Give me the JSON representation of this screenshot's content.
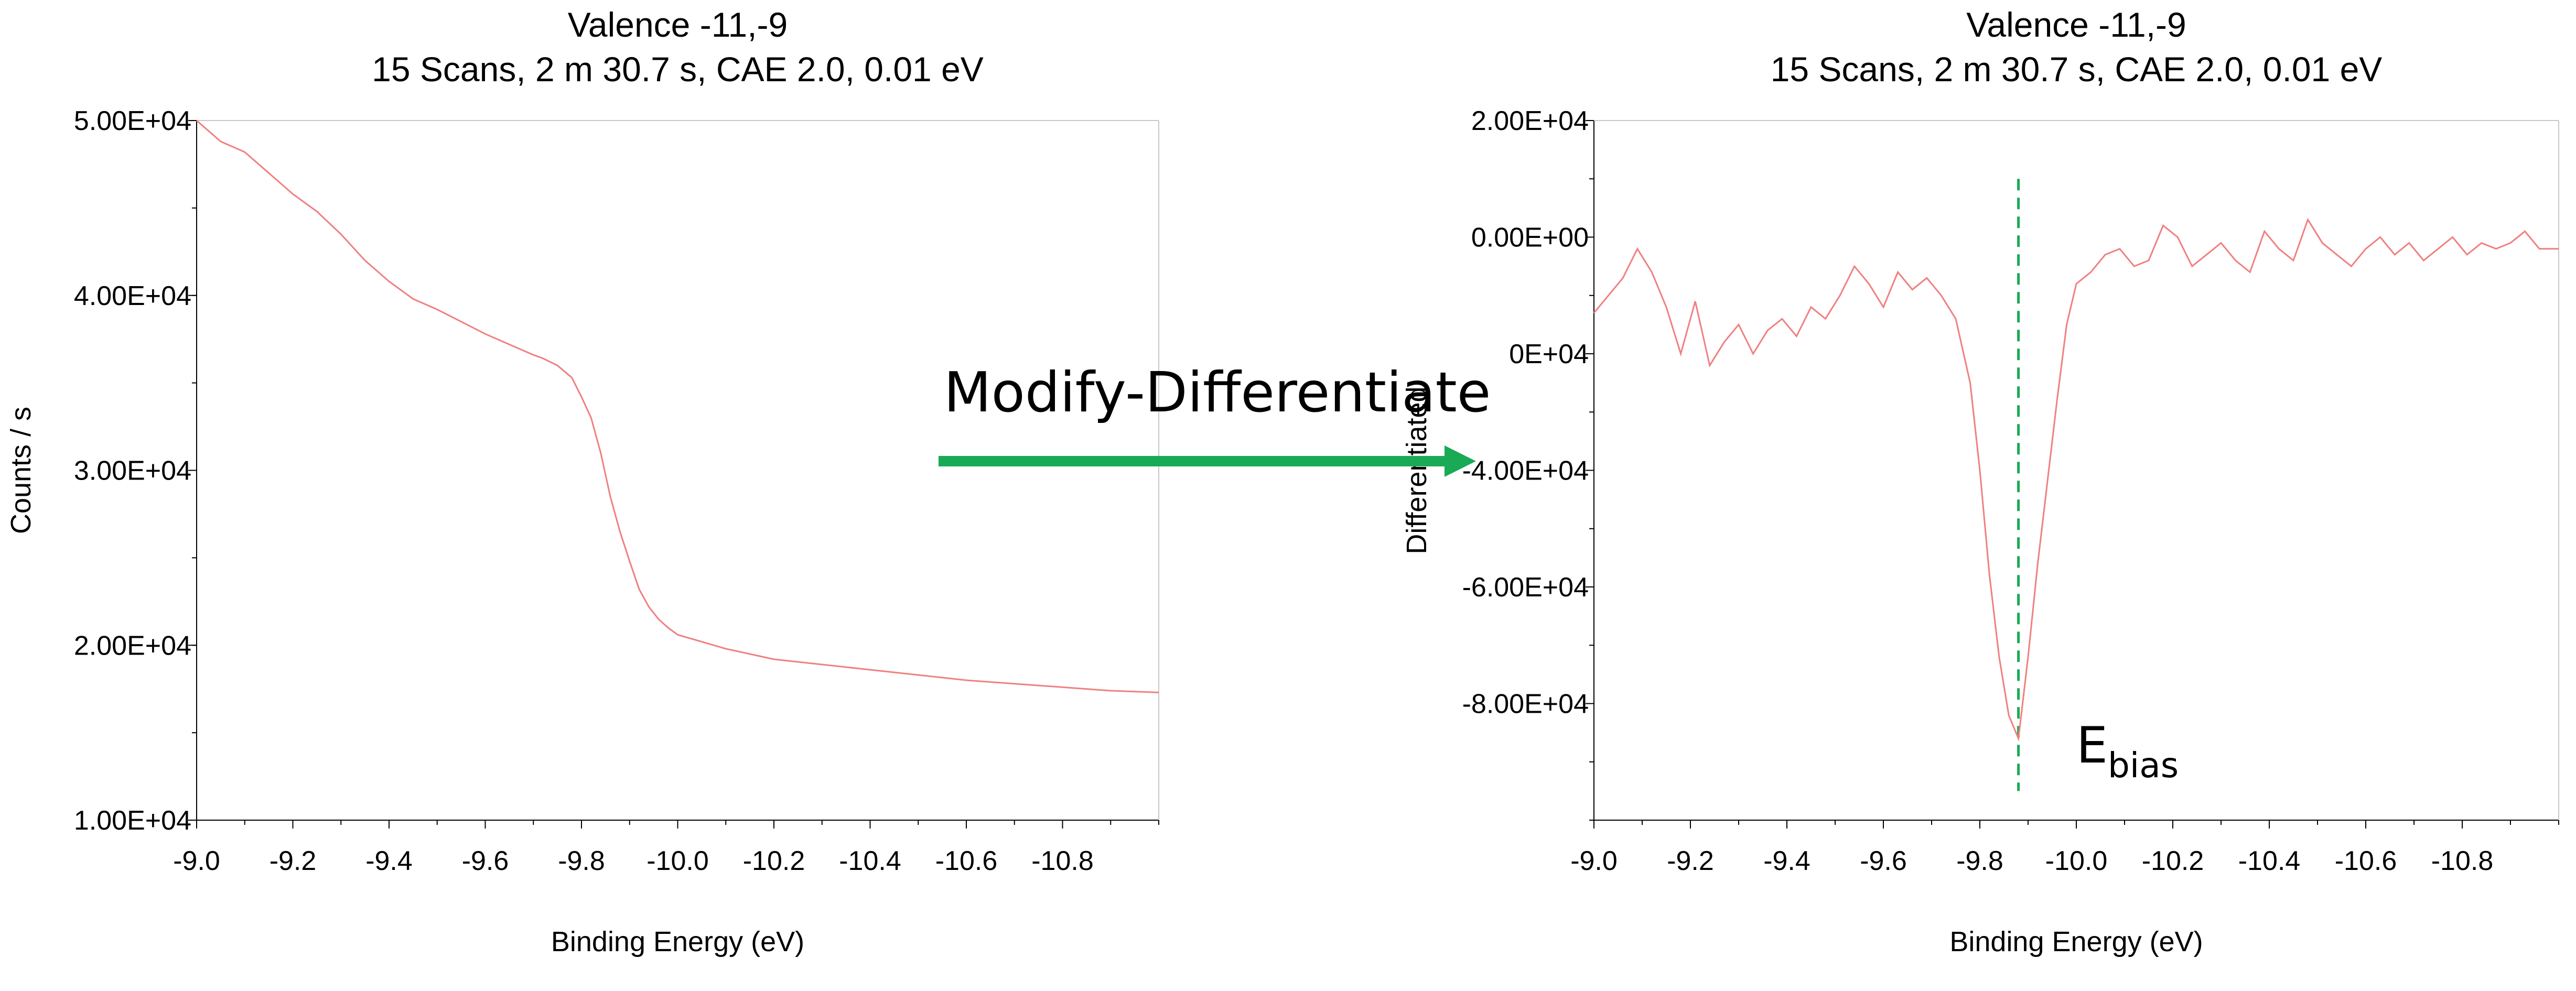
{
  "colors": {
    "trace": "#f08080",
    "marker": "#1aaa55",
    "arrow": "#1aaa55",
    "axis": "#000000"
  },
  "annotation": {
    "arrow_label": "Modify-Differentiate",
    "ebias_main": "E",
    "ebias_sub": "bias"
  },
  "chart_data": [
    {
      "type": "line",
      "title": "Valence -11,-9",
      "subtitle": "15 Scans,  2 m 30.7 s,  CAE 2.0,  0.01 eV",
      "xlabel": "Binding Energy (eV)",
      "ylabel": "Counts / s",
      "xlim": [
        -9.0,
        -11.0
      ],
      "ylim": [
        10000,
        50000
      ],
      "xticks": [
        "-9.0",
        "-9.2",
        "-9.4",
        "-9.6",
        "-9.8",
        "-10.0",
        "-10.2",
        "-10.4",
        "-10.6",
        "-10.8"
      ],
      "yticks": [
        "1.00E+04",
        "2.00E+04",
        "3.00E+04",
        "4.00E+04",
        "5.00E+04"
      ],
      "series": [
        {
          "x": [
            -9.0,
            -9.05,
            -9.1,
            -9.15,
            -9.2,
            -9.25,
            -9.3,
            -9.35,
            -9.4,
            -9.45,
            -9.5,
            -9.55,
            -9.6,
            -9.65,
            -9.7,
            -9.72,
            -9.75,
            -9.78,
            -9.8,
            -9.82,
            -9.84,
            -9.86,
            -9.88,
            -9.9,
            -9.92,
            -9.94,
            -9.96,
            -9.98,
            -10.0,
            -10.05,
            -10.1,
            -10.2,
            -10.3,
            -10.4,
            -10.5,
            -10.6,
            -10.7,
            -10.8,
            -10.9,
            -11.0
          ],
          "values": [
            50000,
            48800,
            48200,
            47000,
            45800,
            44800,
            43500,
            42000,
            40800,
            39800,
            39200,
            38500,
            37800,
            37200,
            36600,
            36400,
            36000,
            35300,
            34200,
            33000,
            31000,
            28500,
            26500,
            24800,
            23200,
            22200,
            21500,
            21000,
            20600,
            20200,
            19800,
            19200,
            18900,
            18600,
            18300,
            18000,
            17800,
            17600,
            17400,
            17300
          ]
        }
      ]
    },
    {
      "type": "line",
      "title": "Valence -11,-9",
      "subtitle": "15 Scans,  2 m 30.7 s,  CAE 2.0,  0.01 eV",
      "xlabel": "Binding Energy (eV)",
      "ylabel": "Differentiated",
      "xlim": [
        -9.0,
        -11.0
      ],
      "ylim": [
        -100000,
        20000
      ],
      "xticks": [
        "-9.0",
        "-9.2",
        "-9.4",
        "-9.6",
        "-9.8",
        "-10.0",
        "-10.2",
        "-10.4",
        "-10.6",
        "-10.8"
      ],
      "yticks": [
        "2.00E+04",
        "0.00E+00",
        "0E+04",
        "-4.00E+04",
        "-6.00E+04",
        "-8.00E+04"
      ],
      "marker_x": -9.88,
      "series": [
        {
          "x": [
            -9.0,
            -9.03,
            -9.06,
            -9.09,
            -9.12,
            -9.15,
            -9.18,
            -9.21,
            -9.24,
            -9.27,
            -9.3,
            -9.33,
            -9.36,
            -9.39,
            -9.42,
            -9.45,
            -9.48,
            -9.51,
            -9.54,
            -9.57,
            -9.6,
            -9.63,
            -9.66,
            -9.69,
            -9.72,
            -9.75,
            -9.78,
            -9.8,
            -9.82,
            -9.84,
            -9.86,
            -9.88,
            -9.9,
            -9.92,
            -9.94,
            -9.96,
            -9.98,
            -10.0,
            -10.03,
            -10.06,
            -10.09,
            -10.12,
            -10.15,
            -10.18,
            -10.21,
            -10.24,
            -10.27,
            -10.3,
            -10.33,
            -10.36,
            -10.39,
            -10.42,
            -10.45,
            -10.48,
            -10.51,
            -10.54,
            -10.57,
            -10.6,
            -10.63,
            -10.66,
            -10.69,
            -10.72,
            -10.75,
            -10.78,
            -10.81,
            -10.84,
            -10.87,
            -10.9,
            -10.93,
            -10.96,
            -11.0
          ],
          "values": [
            -13000,
            -10000,
            -7000,
            -2000,
            -6000,
            -12000,
            -20000,
            -11000,
            -22000,
            -18000,
            -15000,
            -20000,
            -16000,
            -14000,
            -17000,
            -12000,
            -14000,
            -10000,
            -5000,
            -8000,
            -12000,
            -6000,
            -9000,
            -7000,
            -10000,
            -14000,
            -25000,
            -40000,
            -58000,
            -72000,
            -82000,
            -86000,
            -72000,
            -56000,
            -42000,
            -28000,
            -15000,
            -8000,
            -6000,
            -3000,
            -2000,
            -5000,
            -4000,
            2000,
            0,
            -5000,
            -3000,
            -1000,
            -4000,
            -6000,
            1000,
            -2000,
            -4000,
            3000,
            -1000,
            -3000,
            -5000,
            -2000,
            0,
            -3000,
            -1000,
            -4000,
            -2000,
            0,
            -3000,
            -1000,
            -2000,
            -1000,
            1000,
            -2000,
            -2000
          ]
        }
      ]
    }
  ]
}
